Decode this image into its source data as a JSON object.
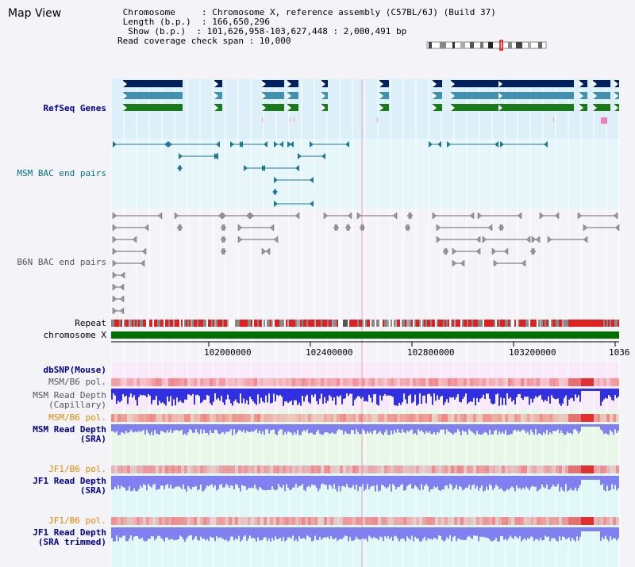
{
  "page": {
    "title": "Map View"
  },
  "info": {
    "line1": " Chromosome     : Chromosome X, reference assembly (C57BL/6J) (Build 37)",
    "line2": " Length (b.p.)  : 166,650,296",
    "line3": "  Show (b.p.)  : 101,626,958-103,627,448 : 2,000,491 bp",
    "line4": "Read coverage check span : 10,000"
  },
  "tracks": {
    "refseq": "RefSeq Genes",
    "msm_bac": "MSM BAC end pairs",
    "b6n_bac": "B6N BAC end pairs",
    "repeat": "Repeat",
    "chrom": "chromosome X",
    "dbsnp": "dbSNP(Mouse)",
    "msm_b6_pol_1": "MSM/B6 pol.",
    "msm_depth_cap": "MSM Read Depth\n(Capillary)",
    "msm_b6_pol_2": "MSM/B6 pol.",
    "msm_depth_sra": "MSM Read Depth\n(SRA)",
    "jf1_b6_pol_1": "JF1/B6 pol.",
    "jf1_depth_sra": "JF1 Read Depth\n(SRA)",
    "jf1_b6_pol_2": "JF1/B6 pol.",
    "jf1_depth_trim": "JF1 Read Depth\n(SRA trimmed)"
  },
  "ruler": {
    "ticks": [
      "102000000",
      "102400000",
      "102800000",
      "103200000",
      "1036"
    ]
  },
  "colors": {
    "refseq_dark": "#002060",
    "refseq_mid": "#4090b0",
    "refseq_green": "#1a7a1a",
    "msm_bac": "#1a7a9a",
    "b6n_bac": "#666666",
    "repeat_red": "#e02020",
    "chrom_green": "#007000",
    "depth_blue": "#3030e0",
    "depth_light": "#8080f0",
    "pol_red": "#f08080"
  }
}
